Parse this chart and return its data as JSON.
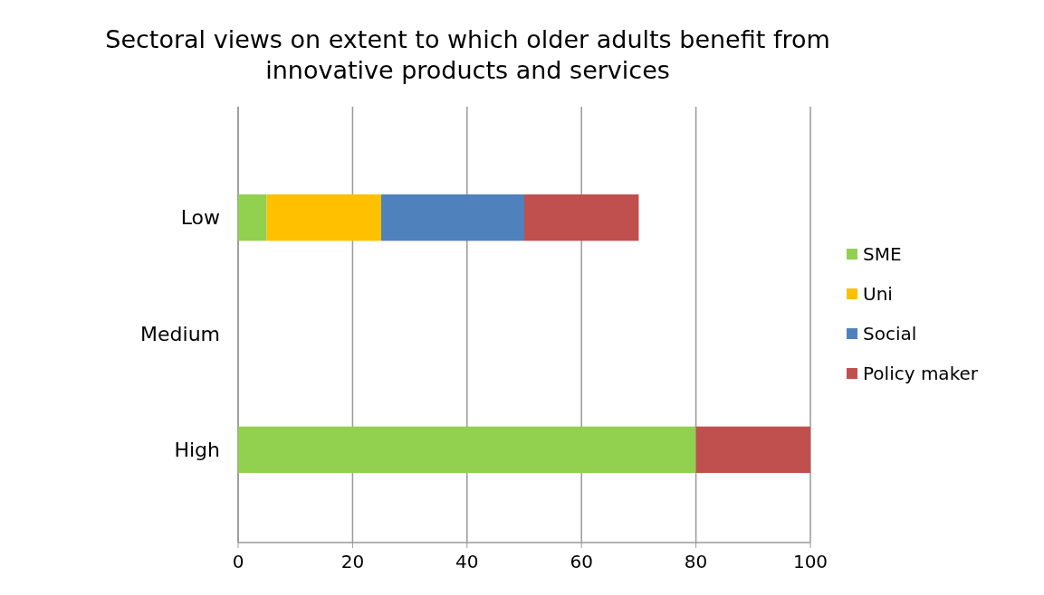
{
  "chart_data": {
    "type": "bar",
    "orientation": "horizontal",
    "stacked": true,
    "title": "Sectoral views on extent to which older adults benefit from innovative products and services",
    "categories": [
      "Low",
      "Medium",
      "High"
    ],
    "series": [
      {
        "name": "SME",
        "color": "#92d050",
        "values": [
          5,
          0,
          80
        ]
      },
      {
        "name": "Uni",
        "color": "#ffc000",
        "values": [
          20,
          0,
          0
        ]
      },
      {
        "name": "Social",
        "color": "#4f81bd",
        "values": [
          25,
          0,
          0
        ]
      },
      {
        "name": "Policy maker",
        "color": "#c0504d",
        "values": [
          20,
          0,
          20
        ]
      }
    ],
    "xlim": [
      0,
      100
    ],
    "xticks": [
      0,
      20,
      40,
      60,
      80,
      100
    ],
    "grid": "x",
    "legend": "right"
  }
}
